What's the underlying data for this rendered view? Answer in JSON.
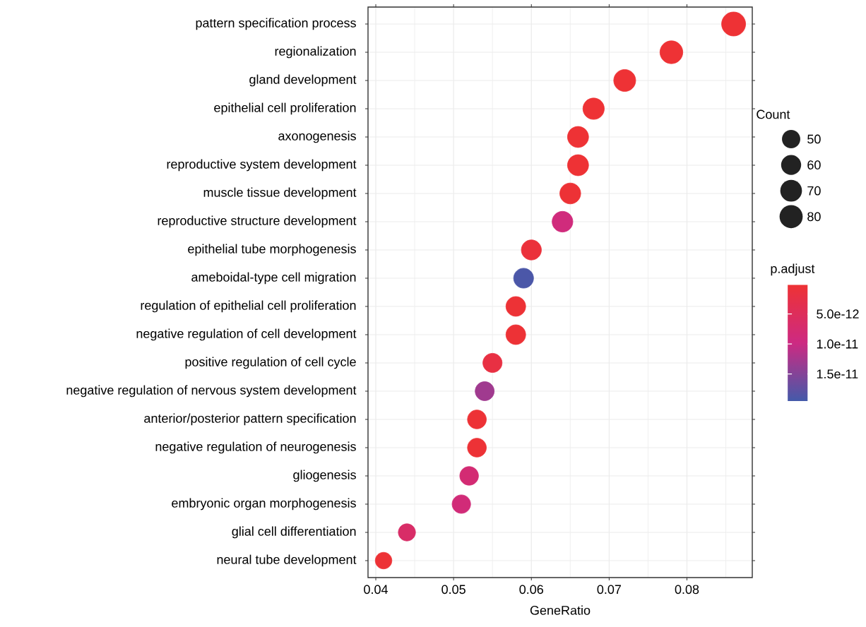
{
  "chart_data": {
    "type": "bubble",
    "orientation": "horizontal",
    "xlabel": "GeneRatio",
    "legend_title": "Count",
    "clabel": "p.adjust",
    "categories": [
      "pattern specification process",
      "regionalization",
      "gland development",
      "epithelial cell proliferation",
      "axonogenesis",
      "reproductive system development",
      "muscle tissue development",
      "reproductive structure development",
      "epithelial tube morphogenesis",
      "ameboidal-type cell migration",
      "regulation of epithelial cell proliferation",
      "negative regulation of cell development",
      "positive regulation of cell cycle",
      "negative regulation of nervous system development",
      "anterior/posterior pattern specification",
      "negative regulation of neurogenesis",
      "gliogenesis",
      "embryonic organ morphogenesis",
      "glial cell differentiation",
      "neural tube development"
    ],
    "values": [
      0.086,
      0.078,
      0.072,
      0.068,
      0.066,
      0.066,
      0.065,
      0.064,
      0.06,
      0.059,
      0.058,
      0.058,
      0.055,
      0.054,
      0.053,
      0.053,
      0.052,
      0.051,
      0.044,
      0.041
    ],
    "sizes": [
      86,
      78,
      72,
      68,
      66,
      66,
      65,
      64,
      60,
      59,
      58,
      58,
      55,
      54,
      53,
      53,
      52,
      51,
      44,
      41
    ],
    "cvalues": [
      2e-13,
      2e-13,
      2e-13,
      2e-13,
      2e-13,
      2e-13,
      3e-13,
      9e-12,
      1e-12,
      1.9e-11,
      3e-13,
      3e-13,
      2e-12,
      1.3e-11,
      3e-13,
      3e-13,
      8e-12,
      8.5e-12,
      6.5e-12,
      3e-13
    ],
    "size_legend": [
      50,
      60,
      70,
      80
    ],
    "xlim": [
      0.039,
      0.0884
    ],
    "xticks": [
      0.04,
      0.05,
      0.06,
      0.07,
      0.08
    ],
    "clim": [
      1e-13,
      1.95e-11
    ],
    "cticks": [
      {
        "value": 5e-12,
        "label": "5.0e-12"
      },
      {
        "value": 1e-11,
        "label": "1.0e-11"
      },
      {
        "value": 1.5e-11,
        "label": "1.5e-11"
      }
    ],
    "grid": true,
    "marker": "circle"
  }
}
